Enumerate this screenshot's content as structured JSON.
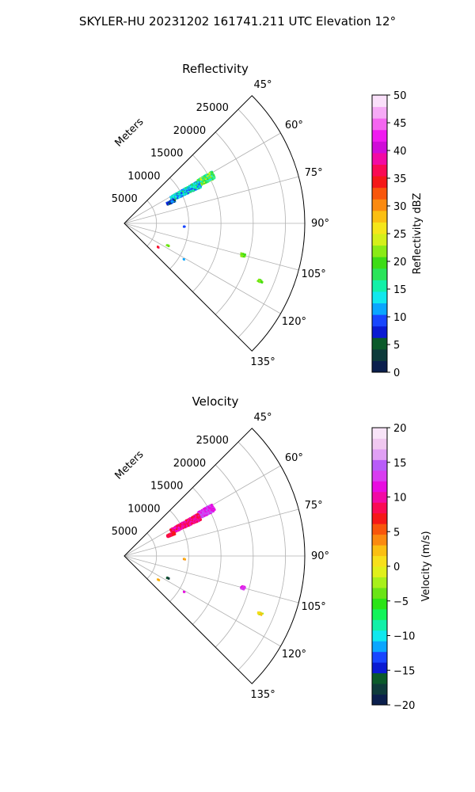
{
  "suptitle": "SKYLER-HU  20231202  161741.211 UTC Elevation 12°",
  "chart_data": [
    {
      "type": "polar-scatter",
      "title": "Reflectivity",
      "range_label": "Meters",
      "radial_ticks": [
        5000,
        10000,
        15000,
        20000,
        25000
      ],
      "radial_tick_labels": [
        "5000",
        "10000",
        "15000",
        "20000",
        "25000"
      ],
      "rmax": 28000,
      "theta_range_deg": [
        45,
        135
      ],
      "angle_ticks_deg": [
        45,
        60,
        75,
        90,
        105,
        120,
        135
      ],
      "angle_tick_labels": [
        "45°",
        "60°",
        "75°",
        "90°",
        "105°",
        "120°",
        "135°"
      ],
      "grid": true,
      "colorbar": {
        "label": "Reflectivity dBZ",
        "min": 0,
        "max": 50,
        "ticks": [
          0,
          5,
          10,
          15,
          20,
          25,
          30,
          35,
          40,
          45,
          50
        ],
        "tick_labels": [
          "0",
          "5",
          "10",
          "15",
          "20",
          "25",
          "30",
          "35",
          "40",
          "45",
          "50"
        ],
        "colors": [
          "#0b1f4d",
          "#0e3b3b",
          "#0b5a2a",
          "#0a1ad2",
          "#1846ff",
          "#0aa6ff",
          "#11e8ee",
          "#12f0a8",
          "#2ae45a",
          "#3ddc16",
          "#8aeb16",
          "#d4f01a",
          "#f5e61a",
          "#fbbf12",
          "#fb8a10",
          "#f8560c",
          "#f51818",
          "#fa0a54",
          "#f20aa4",
          "#d00cd8",
          "#f01af0",
          "#f466f0",
          "#f6aaf6",
          "#fae0fa"
        ],
        "position": "right"
      },
      "clusters": [
        {
          "az": 61.5,
          "r_min": 13200,
          "r_max": 15800,
          "az_spread": 4.5,
          "values": [
            14,
            16,
            18,
            20,
            22,
            24
          ]
        },
        {
          "az": 62.5,
          "r_min": 8200,
          "r_max": 13200,
          "az_spread": 5,
          "values": [
            9,
            10,
            12,
            13,
            15,
            17
          ]
        },
        {
          "az": 65.5,
          "r_min": 7300,
          "r_max": 8600,
          "az_spread": 3,
          "values": [
            3,
            5,
            7,
            9,
            11
          ]
        },
        {
          "az": 93,
          "r_min": 9200,
          "r_max": 9500,
          "az_spread": 1,
          "values": [
            9,
            10
          ]
        },
        {
          "az": 105,
          "r_min": 18700,
          "r_max": 19400,
          "az_spread": 1.5,
          "values": [
            20,
            21
          ]
        },
        {
          "az": 113,
          "r_min": 22500,
          "r_max": 23300,
          "az_spread": 1,
          "values": [
            19,
            21
          ]
        },
        {
          "az": 117,
          "r_min": 7400,
          "r_max": 7800,
          "az_spread": 1.2,
          "values": [
            20,
            22
          ]
        },
        {
          "az": 125,
          "r_min": 6300,
          "r_max": 6600,
          "az_spread": 1,
          "values": [
            34,
            36
          ]
        },
        {
          "az": 121,
          "r_min": 10700,
          "r_max": 10900,
          "az_spread": 0.6,
          "values": [
            12
          ]
        }
      ]
    },
    {
      "type": "polar-scatter",
      "title": "Velocity",
      "range_label": "Meters",
      "radial_ticks": [
        5000,
        10000,
        15000,
        20000,
        25000
      ],
      "radial_tick_labels": [
        "5000",
        "10000",
        "15000",
        "20000",
        "25000"
      ],
      "rmax": 28000,
      "theta_range_deg": [
        45,
        135
      ],
      "angle_ticks_deg": [
        45,
        60,
        75,
        90,
        105,
        120,
        135
      ],
      "angle_tick_labels": [
        "45°",
        "60°",
        "75°",
        "90°",
        "105°",
        "120°",
        "135°"
      ],
      "grid": true,
      "colorbar": {
        "label": "Velocity (m/s)",
        "min": -20,
        "max": 20,
        "ticks": [
          -20,
          -15,
          -10,
          -5,
          0,
          5,
          10,
          15,
          20
        ],
        "tick_labels": [
          "−20",
          "−15",
          "−10",
          "−5",
          "0",
          "5",
          "10",
          "15",
          "20"
        ],
        "colors": [
          "#0b1f4d",
          "#0e3b3b",
          "#0b5a2a",
          "#0a1ad2",
          "#1846ff",
          "#0aa6ff",
          "#11e8ee",
          "#12f0a8",
          "#12f45a",
          "#2ae416",
          "#6ae416",
          "#a8f01a",
          "#e0f01a",
          "#f7e01a",
          "#fbbf12",
          "#fb8a10",
          "#f8560c",
          "#f51818",
          "#fa0a54",
          "#f20aa4",
          "#e80ce0",
          "#d83cf0",
          "#b85cf8",
          "#e0a0f4",
          "#f0c8f0",
          "#f8e4f8"
        ],
        "position": "right"
      },
      "clusters": [
        {
          "az": 61.5,
          "r_min": 13200,
          "r_max": 15800,
          "az_spread": 4.5,
          "values": [
            11,
            12,
            13,
            14
          ]
        },
        {
          "az": 62.5,
          "r_min": 8200,
          "r_max": 13200,
          "az_spread": 5,
          "values": [
            7.5,
            8,
            9,
            10,
            11
          ]
        },
        {
          "az": 65.5,
          "r_min": 7300,
          "r_max": 8600,
          "az_spread": 3,
          "values": [
            7,
            8,
            9
          ]
        },
        {
          "az": 93,
          "r_min": 9200,
          "r_max": 9500,
          "az_spread": 1,
          "values": [
            3,
            4
          ]
        },
        {
          "az": 105,
          "r_min": 18700,
          "r_max": 19400,
          "az_spread": 1.5,
          "values": [
            12,
            13
          ]
        },
        {
          "az": 113,
          "r_min": 22500,
          "r_max": 23300,
          "az_spread": 1,
          "values": [
            1,
            2,
            -3
          ]
        },
        {
          "az": 117,
          "r_min": 7400,
          "r_max": 7800,
          "az_spread": 1.2,
          "values": [
            -18,
            -16
          ]
        },
        {
          "az": 125,
          "r_min": 6300,
          "r_max": 6600,
          "az_spread": 1,
          "values": [
            2,
            4
          ]
        },
        {
          "az": 121,
          "r_min": 10700,
          "r_max": 10900,
          "az_spread": 0.6,
          "values": [
            11
          ]
        }
      ]
    }
  ]
}
